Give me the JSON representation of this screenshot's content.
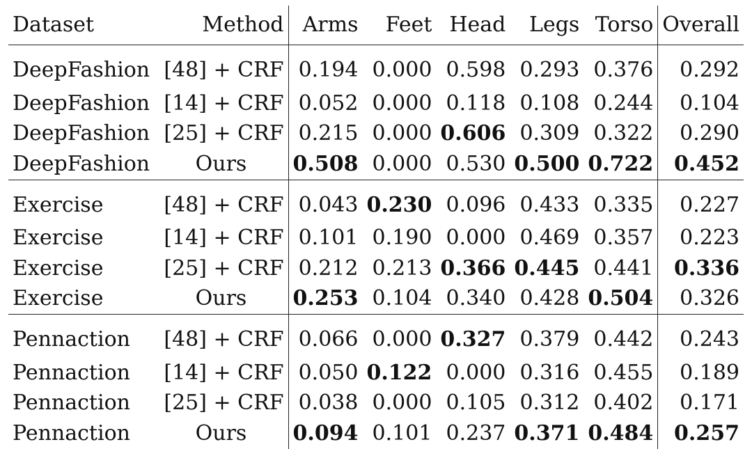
{
  "headers": [
    "Dataset",
    "Method",
    "Arms",
    "Feet",
    "Head",
    "Legs",
    "Torso",
    "Overall"
  ],
  "rows": [
    {
      "dataset": "DeepFashion",
      "method": "[48] + CRF",
      "arms": "0.194",
      "feet": "0.000",
      "head": "0.598",
      "legs": "0.293",
      "torso": "0.376",
      "overall": "0.292"
    },
    {
      "dataset": "DeepFashion",
      "method": "[14] + CRF",
      "arms": "0.052",
      "feet": "0.000",
      "head": "0.118",
      "legs": "0.108",
      "torso": "0.244",
      "overall": "0.104"
    },
    {
      "dataset": "DeepFashion",
      "method": "[25] + CRF",
      "arms": "0.215",
      "feet": "0.000",
      "head": "0.606",
      "legs": "0.309",
      "torso": "0.322",
      "overall": "0.290"
    },
    {
      "dataset": "DeepFashion",
      "method": "Ours",
      "arms": "0.508",
      "feet": "0.000",
      "head": "0.530",
      "legs": "0.500",
      "torso": "0.722",
      "overall": "0.452"
    },
    {
      "dataset": "Exercise",
      "method": "[48] + CRF",
      "arms": "0.043",
      "feet": "0.230",
      "head": "0.096",
      "legs": "0.433",
      "torso": "0.335",
      "overall": "0.227"
    },
    {
      "dataset": "Exercise",
      "method": "[14] + CRF",
      "arms": "0.101",
      "feet": "0.190",
      "head": "0.000",
      "legs": "0.469",
      "torso": "0.357",
      "overall": "0.223"
    },
    {
      "dataset": "Exercise",
      "method": "[25] + CRF",
      "arms": "0.212",
      "feet": "0.213",
      "head": "0.366",
      "legs": "0.445",
      "torso": "0.441",
      "overall": "0.336"
    },
    {
      "dataset": "Exercise",
      "method": "Ours",
      "arms": "0.253",
      "feet": "0.104",
      "head": "0.340",
      "legs": "0.428",
      "torso": "0.504",
      "overall": "0.326"
    },
    {
      "dataset": "Pennaction",
      "method": "[48] + CRF",
      "arms": "0.066",
      "feet": "0.000",
      "head": "0.327",
      "legs": "0.379",
      "torso": "0.442",
      "overall": "0.243"
    },
    {
      "dataset": "Pennaction",
      "method": "[14] + CRF",
      "arms": "0.050",
      "feet": "0.122",
      "head": "0.000",
      "legs": "0.316",
      "torso": "0.455",
      "overall": "0.189"
    },
    {
      "dataset": "Pennaction",
      "method": "[25] + CRF",
      "arms": "0.038",
      "feet": "0.000",
      "head": "0.105",
      "legs": "0.312",
      "torso": "0.402",
      "overall": "0.171"
    },
    {
      "dataset": "Pennaction",
      "method": "Ours",
      "arms": "0.094",
      "feet": "0.101",
      "head": "0.237",
      "legs": "0.371",
      "torso": "0.484",
      "overall": "0.257"
    }
  ]
}
